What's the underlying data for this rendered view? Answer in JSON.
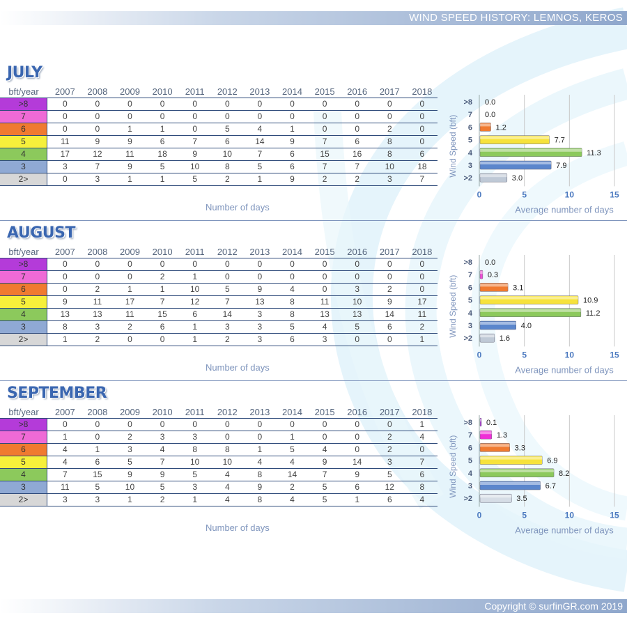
{
  "header": {
    "title": "WIND SPEED HISTORY: LEMNOS, KEROS"
  },
  "footer": {
    "copyright": "Copyright © surfinGR.com 2019"
  },
  "table_header": {
    "corner": "bft/year"
  },
  "years": [
    "2007",
    "2008",
    "2009",
    "2010",
    "2011",
    "2012",
    "2013",
    "2014",
    "2015",
    "2016",
    "2017",
    "2018"
  ],
  "categories": [
    {
      "label": ">8",
      "color": "#b43bd9"
    },
    {
      "label": "7",
      "color": "#ef6ad6"
    },
    {
      "label": "6",
      "color": "#f07a30"
    },
    {
      "label": "5",
      "color": "#f6f03b"
    },
    {
      "label": "4",
      "color": "#8cc95c"
    },
    {
      "label": "3",
      "color": "#8fa9d4"
    },
    {
      "label": "2>",
      "color": "#d7d7d7"
    }
  ],
  "x_caption": "Number of days",
  "chart_data": [
    {
      "type": "bar",
      "orientation": "horizontal",
      "categories": [
        ">8",
        "7",
        "6",
        "5",
        "4",
        "3",
        ">2"
      ],
      "values": [
        0.0,
        0.0,
        1.2,
        7.7,
        11.3,
        7.9,
        3.0
      ],
      "value_labels": [
        "0.0",
        "0.0",
        "1.2",
        "7.7",
        "11.3",
        "7.9",
        "3.0"
      ],
      "bar_colors": [
        "#b43bd9",
        "#ef6ad6",
        "#f07a30",
        "#f6e23b",
        "#8cc95c",
        "#5b86cc",
        "#bfc9d6"
      ],
      "xlabel": "Average number of days",
      "ylabel": "Wind Speed (bft)",
      "xlim": [
        0,
        15
      ],
      "xticks": [
        "0",
        "5",
        "10",
        "15"
      ],
      "grid": true
    },
    {
      "type": "bar",
      "orientation": "horizontal",
      "categories": [
        ">8",
        "7",
        "6",
        "5",
        "4",
        "3",
        ">2"
      ],
      "values": [
        0.0,
        0.3,
        3.1,
        10.9,
        11.2,
        4.0,
        1.6
      ],
      "value_labels": [
        "0.0",
        "0.3",
        "3.1",
        "10.9",
        "11.2",
        "4.0",
        "1.6"
      ],
      "bar_colors": [
        "#b43bd9",
        "#ef4fd6",
        "#f07a30",
        "#f6e23b",
        "#8cc95c",
        "#5b86cc",
        "#bfc9d6"
      ],
      "xlabel": "Average number of days",
      "ylabel": "Wind Speed (bft)",
      "xlim": [
        0,
        15
      ],
      "xticks": [
        "0",
        "5",
        "10",
        "15"
      ],
      "grid": true
    },
    {
      "type": "bar",
      "orientation": "horizontal",
      "categories": [
        ">8",
        "7",
        "6",
        "5",
        "4",
        "3",
        ">2"
      ],
      "values": [
        0.1,
        1.3,
        3.3,
        6.9,
        8.2,
        6.7,
        3.5
      ],
      "value_labels": [
        "0.1",
        "1.3",
        "3.3",
        "6.9",
        "8.2",
        "6.7",
        "3.5"
      ],
      "bar_colors": [
        "#b43bd9",
        "#ef2fd6",
        "#f07a30",
        "#f6e23b",
        "#8cc95c",
        "#5b86cc",
        "#d6dde6"
      ],
      "xlabel": "Average number of days",
      "ylabel": "Wind Speed (bft)",
      "xlim": [
        0,
        15
      ],
      "xticks": [
        "0",
        "5",
        "10",
        "15"
      ],
      "grid": true
    }
  ],
  "months": [
    {
      "name": "JULY",
      "rows": [
        [
          "0",
          "0",
          "0",
          "0",
          "0",
          "0",
          "0",
          "0",
          "0",
          "0",
          "0",
          "0"
        ],
        [
          "0",
          "0",
          "0",
          "0",
          "0",
          "0",
          "0",
          "0",
          "0",
          "0",
          "0",
          "0"
        ],
        [
          "0",
          "0",
          "1",
          "1",
          "0",
          "5",
          "4",
          "1",
          "0",
          "0",
          "2",
          "0"
        ],
        [
          "11",
          "9",
          "9",
          "6",
          "7",
          "6",
          "14",
          "9",
          "7",
          "6",
          "8",
          "0"
        ],
        [
          "17",
          "12",
          "11",
          "18",
          "9",
          "10",
          "7",
          "6",
          "15",
          "16",
          "8",
          "6"
        ],
        [
          "3",
          "7",
          "9",
          "5",
          "10",
          "8",
          "5",
          "6",
          "7",
          "7",
          "10",
          "18"
        ],
        [
          "0",
          "3",
          "1",
          "1",
          "5",
          "2",
          "1",
          "9",
          "2",
          "2",
          "3",
          "7"
        ]
      ]
    },
    {
      "name": "AUGUST",
      "rows": [
        [
          "0",
          "0",
          "0",
          "0",
          "0",
          "0",
          "0",
          "0",
          "0",
          "0",
          "0",
          "0"
        ],
        [
          "0",
          "0",
          "0",
          "2",
          "1",
          "0",
          "0",
          "0",
          "0",
          "0",
          "0",
          "0"
        ],
        [
          "0",
          "2",
          "1",
          "1",
          "10",
          "5",
          "9",
          "4",
          "0",
          "3",
          "2",
          "0"
        ],
        [
          "9",
          "11",
          "17",
          "7",
          "12",
          "7",
          "13",
          "8",
          "11",
          "10",
          "9",
          "17"
        ],
        [
          "13",
          "13",
          "11",
          "15",
          "6",
          "14",
          "3",
          "8",
          "13",
          "13",
          "14",
          "11"
        ],
        [
          "8",
          "3",
          "2",
          "6",
          "1",
          "3",
          "3",
          "5",
          "4",
          "5",
          "6",
          "2"
        ],
        [
          "1",
          "2",
          "0",
          "0",
          "1",
          "2",
          "3",
          "6",
          "3",
          "0",
          "0",
          "1"
        ]
      ]
    },
    {
      "name": "SEPTEMBER",
      "rows": [
        [
          "0",
          "0",
          "0",
          "0",
          "0",
          "0",
          "0",
          "0",
          "0",
          "0",
          "0",
          "1"
        ],
        [
          "1",
          "0",
          "2",
          "3",
          "3",
          "0",
          "0",
          "1",
          "0",
          "0",
          "2",
          "4"
        ],
        [
          "4",
          "1",
          "3",
          "4",
          "8",
          "8",
          "1",
          "5",
          "4",
          "0",
          "2",
          "0"
        ],
        [
          "4",
          "6",
          "5",
          "7",
          "10",
          "10",
          "4",
          "4",
          "9",
          "14",
          "3",
          "7"
        ],
        [
          "7",
          "15",
          "9",
          "9",
          "5",
          "4",
          "8",
          "14",
          "7",
          "9",
          "5",
          "6"
        ],
        [
          "11",
          "5",
          "10",
          "5",
          "3",
          "4",
          "9",
          "2",
          "5",
          "6",
          "12",
          "8"
        ],
        [
          "3",
          "3",
          "1",
          "2",
          "1",
          "4",
          "8",
          "4",
          "5",
          "1",
          "6",
          "4"
        ]
      ]
    }
  ]
}
